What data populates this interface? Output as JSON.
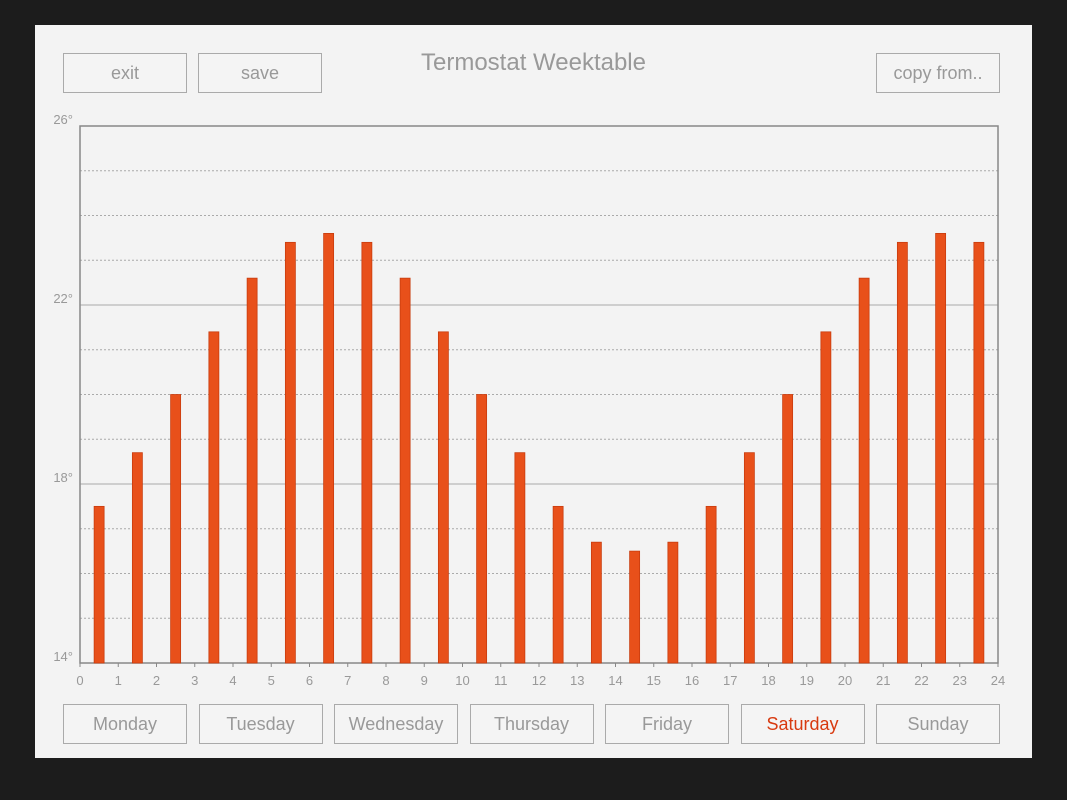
{
  "header": {
    "title": "Termostat Weektable",
    "buttons": [
      "exit",
      "save",
      "copy from.."
    ]
  },
  "days": [
    {
      "label": "Monday",
      "selected": false
    },
    {
      "label": "Tuesday",
      "selected": false
    },
    {
      "label": "Wednesday",
      "selected": false
    },
    {
      "label": "Thursday",
      "selected": false
    },
    {
      "label": "Friday",
      "selected": false
    },
    {
      "label": "Saturday",
      "selected": true
    },
    {
      "label": "Sunday",
      "selected": false
    }
  ],
  "chart_data": {
    "type": "bar",
    "color": "#e8501a",
    "x": [
      0.5,
      1.5,
      2.5,
      3.5,
      4.5,
      5.5,
      6.5,
      7.5,
      8.5,
      9.5,
      10.5,
      11.5,
      12.5,
      13.5,
      14.5,
      15.5,
      16.5,
      17.5,
      18.5,
      19.5,
      20.5,
      21.5,
      22.5,
      23.5
    ],
    "values": [
      17.5,
      18.7,
      20.0,
      21.4,
      22.6,
      23.4,
      23.6,
      23.4,
      22.6,
      21.4,
      20.0,
      18.7,
      17.5,
      16.7,
      16.5,
      16.7,
      17.5,
      18.7,
      20.0,
      21.4,
      22.6,
      23.4,
      23.6,
      23.4
    ],
    "xlim": [
      0,
      24
    ],
    "xticks": [
      0,
      1,
      2,
      3,
      4,
      5,
      6,
      7,
      8,
      9,
      10,
      11,
      12,
      13,
      14,
      15,
      16,
      17,
      18,
      19,
      20,
      21,
      22,
      23,
      24
    ],
    "ylim": [
      14,
      26
    ],
    "yticks": [
      {
        "value": 14,
        "label": "14°"
      },
      {
        "value": 18,
        "label": "18°"
      },
      {
        "value": 22,
        "label": "22°"
      },
      {
        "value": 26,
        "label": "26°"
      }
    ],
    "minor_yticks": [
      15,
      16,
      17,
      19,
      20,
      21,
      23,
      24,
      25
    ],
    "grid": true
  }
}
